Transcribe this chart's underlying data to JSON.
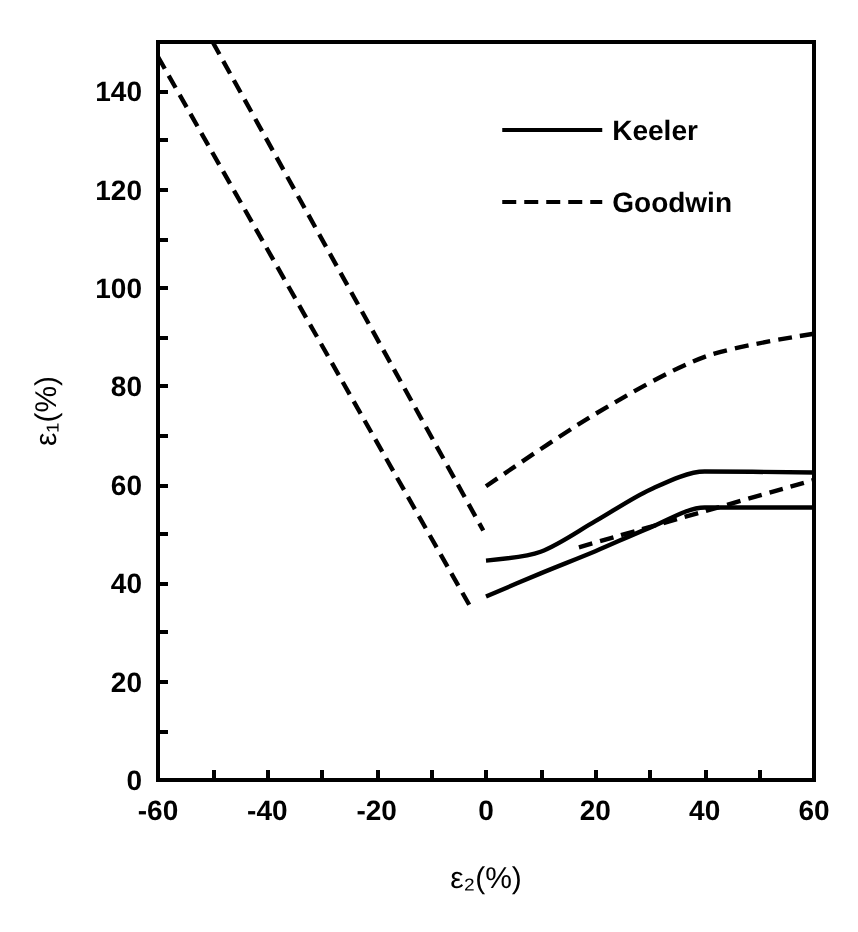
{
  "chart_data": {
    "type": "line",
    "xlabel": "ε₂(%)",
    "ylabel": "ε₁(%)",
    "xlim": [
      -60,
      60
    ],
    "ylim": [
      0,
      150
    ],
    "xticks": [
      -60,
      {
        "value": -50,
        "label": null
      },
      -40,
      {
        "value": -30,
        "label": null
      },
      -20,
      {
        "value": -10,
        "label": null
      },
      0,
      {
        "value": 10,
        "label": null
      },
      20,
      {
        "value": 30,
        "label": null
      },
      40,
      {
        "value": 50,
        "label": null
      },
      60
    ],
    "yticks": [
      0,
      {
        "value": 10,
        "label": null
      },
      20,
      {
        "value": 30,
        "label": null
      },
      40,
      {
        "value": 50,
        "label": null
      },
      60,
      {
        "value": 70,
        "label": null
      },
      80,
      {
        "value": 90,
        "label": null
      },
      100,
      {
        "value": 110,
        "label": null
      },
      120,
      {
        "value": 130,
        "label": null
      },
      140
    ],
    "grid": false,
    "legend": "top right",
    "marker": "none",
    "series": [
      {
        "name": "Keeler",
        "color": "#000000",
        "line_style": "solid",
        "x": [
          0,
          10,
          20,
          30,
          40,
          60
        ],
        "values": [
          44.6,
          46.4,
          52.6,
          59,
          62.7,
          62.5
        ]
      },
      {
        "color": "#000000",
        "line_style": "solid",
        "x": [
          0,
          10,
          20,
          30,
          40,
          60
        ],
        "values": [
          37.3,
          42,
          46.5,
          51.3,
          55.4,
          55.4
        ]
      },
      {
        "name": "Goodwin",
        "color": "#000000",
        "line_style": "dashed",
        "x": [
          -60,
          -2.5
        ],
        "values": [
          147,
          34.5
        ]
      },
      {
        "color": "#000000",
        "line_style": "dashed",
        "x": [
          -50,
          -0.5
        ],
        "values": [
          150,
          50.7
        ]
      },
      {
        "color": "#000000",
        "line_style": "dashed",
        "x": [
          0,
          20,
          40,
          60
        ],
        "values": [
          59.7,
          74.4,
          86,
          90.7
        ]
      },
      {
        "color": "#000000",
        "line_style": "dashed",
        "x": [
          17,
          60
        ],
        "values": [
          47.3,
          61
        ]
      }
    ]
  }
}
